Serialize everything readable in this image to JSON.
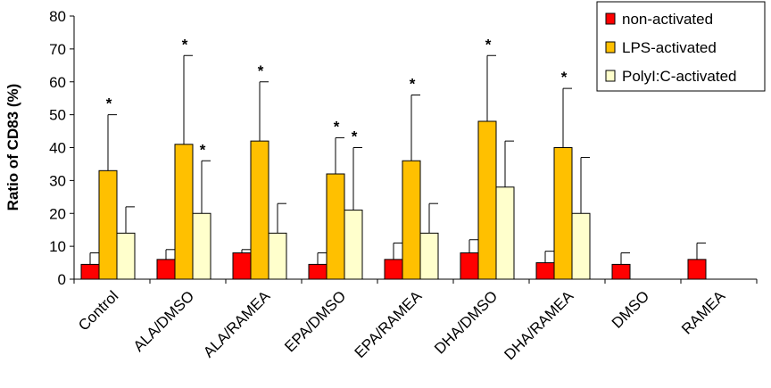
{
  "chart_data": {
    "type": "bar",
    "title": "",
    "xlabel": "",
    "ylabel": "Ratio of CD83 (%)",
    "ylim": [
      0,
      80
    ],
    "yticks": [
      0,
      10,
      20,
      30,
      40,
      50,
      60,
      70,
      80
    ],
    "grid": false,
    "legend_position": "top-right",
    "categories": [
      "Control",
      "ALA/DMSO",
      "ALA/RAMEA",
      "EPA/DMSO",
      "EPA/RAMEA",
      "DHA/DMSO",
      "DHA/RAMEA",
      "DMSO",
      "RAMEA"
    ],
    "series": [
      {
        "name": "non-activated",
        "color": "#ff0000",
        "values": [
          4.5,
          6,
          8,
          4.5,
          6,
          8,
          5,
          4.5,
          6
        ],
        "error_upper": [
          8,
          9,
          9,
          8,
          11,
          12,
          8.5,
          8,
          11
        ],
        "significant": [
          false,
          false,
          false,
          false,
          false,
          false,
          false,
          false,
          false
        ]
      },
      {
        "name": "LPS-activated",
        "color": "#ffc000",
        "values": [
          33,
          41,
          42,
          32,
          36,
          48,
          40,
          null,
          null
        ],
        "error_upper": [
          50,
          68,
          60,
          43,
          56,
          68,
          58,
          null,
          null
        ],
        "significant": [
          true,
          true,
          true,
          true,
          true,
          true,
          true,
          false,
          false
        ]
      },
      {
        "name": "PolyI:C-activated",
        "legend_label": "PolyI:C-activated",
        "color": "#ffffcc",
        "values": [
          14,
          20,
          14,
          21,
          14,
          28,
          20,
          null,
          null
        ],
        "error_upper": [
          22,
          36,
          23,
          40,
          23,
          42,
          37,
          null,
          null
        ],
        "significant": [
          false,
          true,
          false,
          true,
          false,
          false,
          false,
          false,
          false
        ]
      }
    ],
    "annotation_symbol": "*"
  }
}
